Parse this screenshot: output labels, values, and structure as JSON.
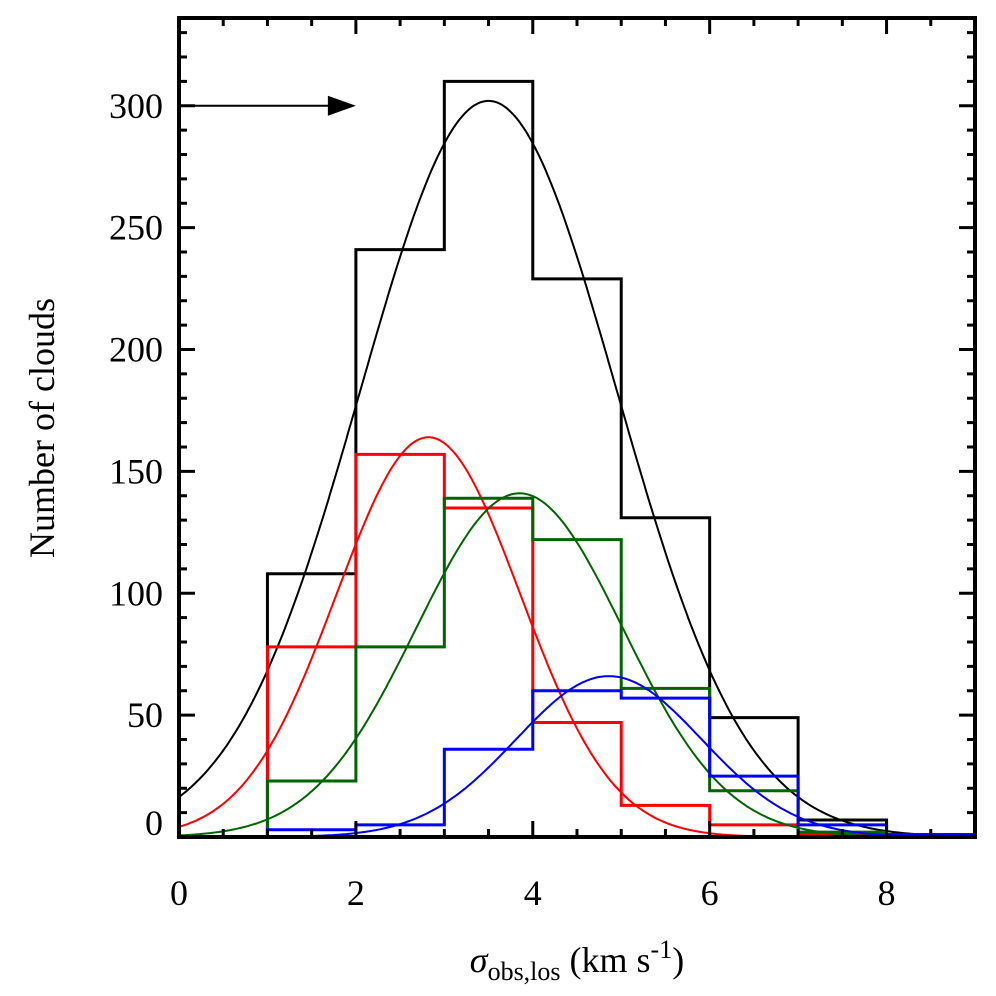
{
  "chart_data": {
    "type": "bar",
    "subtype": "step-histogram-with-gaussian-fits",
    "title": "",
    "xlabel": "σ_obs,los (km s^-1)",
    "xlabel_parts": {
      "symbol": "σ",
      "subscript": "obs,los",
      "unit_open": " (km s",
      "superscript": "-1",
      "unit_close": ")"
    },
    "ylabel": "Number of clouds",
    "xlim": [
      0,
      9
    ],
    "ylim": [
      0,
      336
    ],
    "x_ticks": [
      0,
      2,
      4,
      6,
      8
    ],
    "y_ticks": [
      0,
      50,
      100,
      150,
      200,
      250,
      300
    ],
    "x_minor_step": 0.5,
    "y_minor_step": 10,
    "grid": false,
    "legend": null,
    "bin_edges": [
      1,
      2,
      3,
      4,
      5,
      6,
      7,
      8,
      9
    ],
    "series": [
      {
        "name": "all",
        "color": "#000000",
        "values": [
          108,
          241,
          310,
          229,
          131,
          49,
          7,
          1
        ],
        "fit": {
          "amplitude": 302,
          "mean": 3.5,
          "sigma": 1.45
        }
      },
      {
        "name": "red",
        "color": "#ff0000",
        "values": [
          78,
          157,
          135,
          47,
          13,
          5,
          1,
          0
        ],
        "fit": {
          "amplitude": 164,
          "mean": 2.82,
          "sigma": 1.04
        }
      },
      {
        "name": "green",
        "color": "#006400",
        "values": [
          23,
          78,
          139,
          122,
          61,
          19,
          2,
          0
        ],
        "fit": {
          "amplitude": 141,
          "mean": 3.85,
          "sigma": 1.17
        }
      },
      {
        "name": "blue",
        "color": "#0000ff",
        "values": [
          3,
          5,
          36,
          60,
          57,
          25,
          5,
          1
        ],
        "fit": {
          "amplitude": 66,
          "mean": 4.86,
          "sigma": 1.05
        }
      }
    ],
    "annotations": [
      {
        "type": "arrow",
        "from": [
          0,
          300
        ],
        "to": [
          2,
          300
        ],
        "color": "#000000"
      }
    ]
  }
}
